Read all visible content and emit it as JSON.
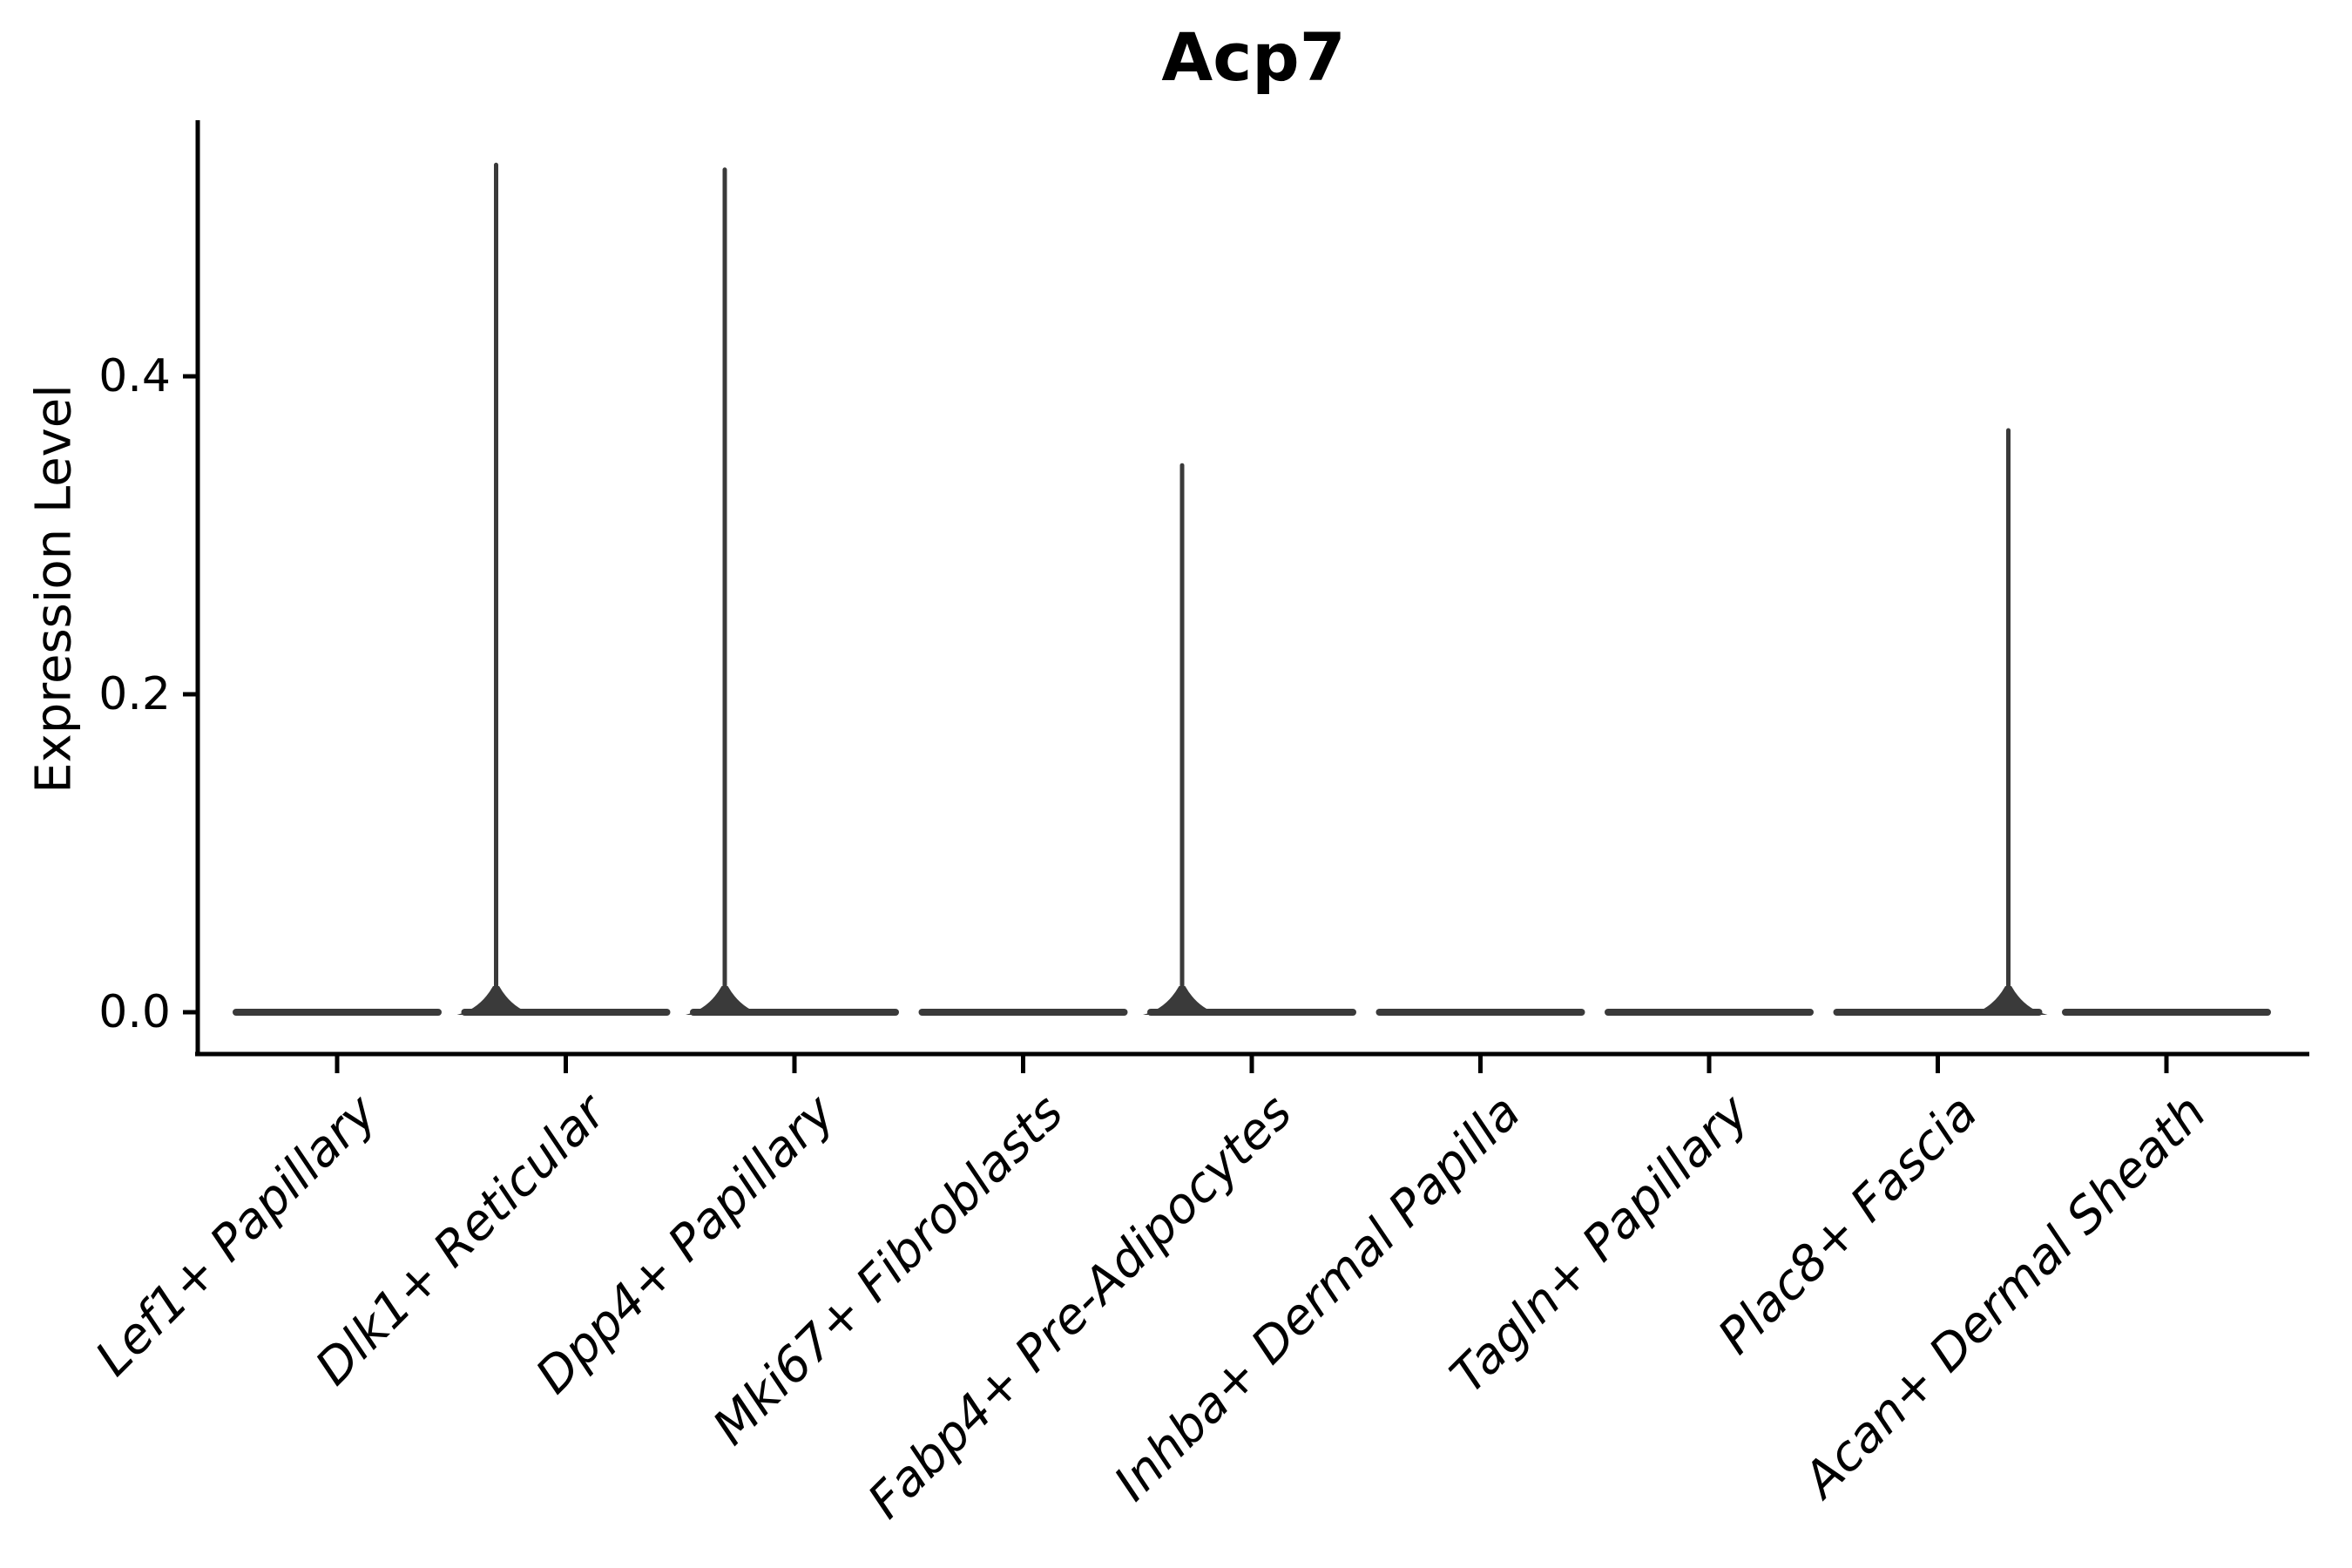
{
  "figure": {
    "title": "Acp7",
    "background_color": "#ffffff",
    "axis_color": "#000000",
    "violin_color": "#3a3a3a"
  },
  "y_axis": {
    "label": "Expression Level",
    "tick_labels": [
      "0.0",
      "0.2",
      "0.4"
    ],
    "tick_values": [
      0.0,
      0.2,
      0.4
    ]
  },
  "chart_data": {
    "type": "violin",
    "title": "Acp7",
    "xlabel": "",
    "ylabel": "Expression Level",
    "ylim": [
      -0.027,
      0.56
    ],
    "yticks": [
      0.0,
      0.2,
      0.4
    ],
    "grid": false,
    "legend_position": "none",
    "categories": [
      "Lef1+ Papillary",
      "Dlk1+ Reticular",
      "Dpp4+ Papillary",
      "Mki67+ Fibroblasts",
      "Fabp4+ Pre-Adipocytes",
      "Inhba+ Dermal Papilla",
      "Tagln+ Papillary",
      "Plac8+ Fascia",
      "Acan+ Dermal Sheath"
    ],
    "violins": [
      {
        "category": "Lef1+ Papillary",
        "body_at_zero": true,
        "max_expression": 0.0,
        "spike_side": null
      },
      {
        "category": "Dlk1+ Reticular",
        "body_at_zero": true,
        "max_expression": 0.533,
        "spike_side": "left"
      },
      {
        "category": "Dpp4+ Papillary",
        "body_at_zero": true,
        "max_expression": 0.53,
        "spike_side": "left"
      },
      {
        "category": "Mki67+ Fibroblasts",
        "body_at_zero": true,
        "max_expression": 0.0,
        "spike_side": null
      },
      {
        "category": "Fabp4+ Pre-Adipocytes",
        "body_at_zero": true,
        "max_expression": 0.344,
        "spike_side": "left"
      },
      {
        "category": "Inhba+ Dermal Papilla",
        "body_at_zero": true,
        "max_expression": 0.0,
        "spike_side": null
      },
      {
        "category": "Tagln+ Papillary",
        "body_at_zero": true,
        "max_expression": 0.0,
        "spike_side": null
      },
      {
        "category": "Plac8+ Fascia",
        "body_at_zero": true,
        "max_expression": 0.366,
        "spike_side": "right"
      },
      {
        "category": "Acan+ Dermal Sheath",
        "body_at_zero": true,
        "max_expression": 0.0,
        "spike_side": null
      }
    ]
  }
}
